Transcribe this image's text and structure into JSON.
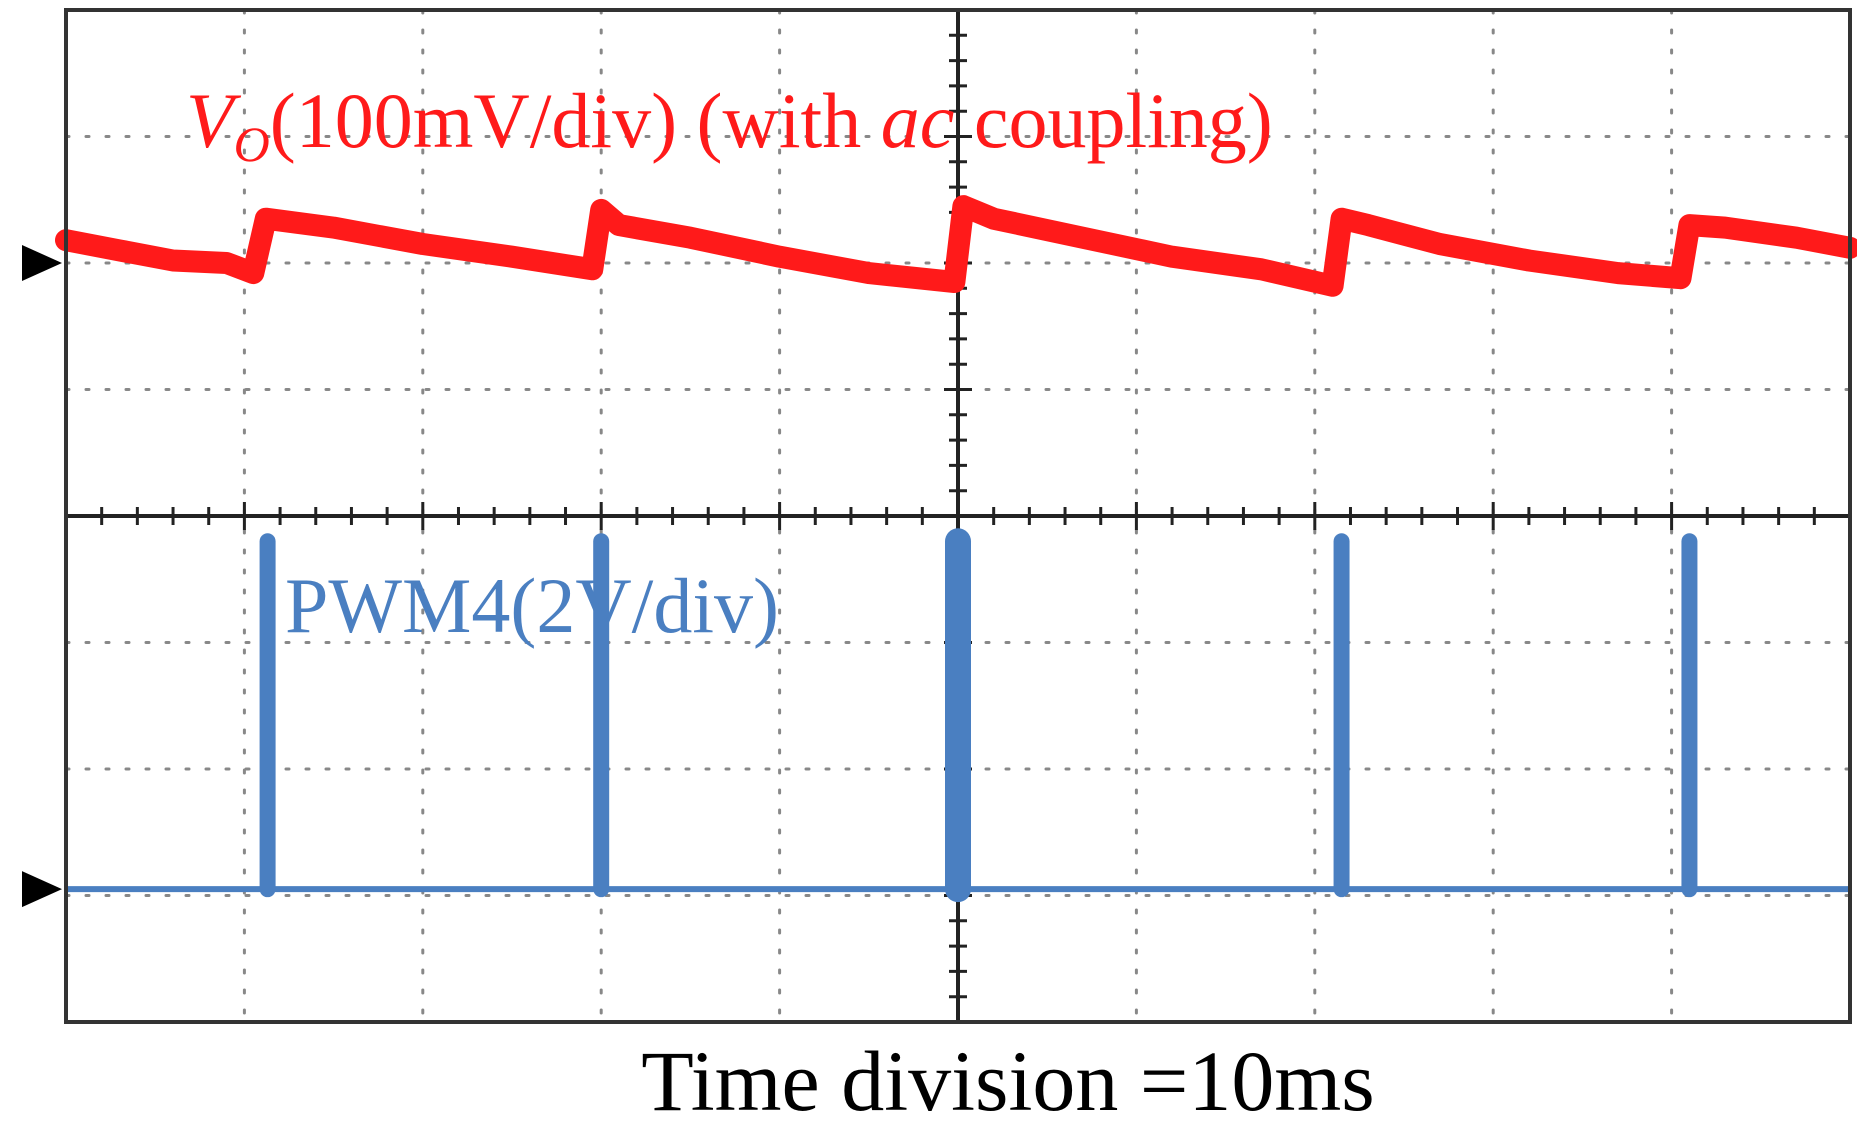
{
  "chart_data": {
    "type": "line",
    "title": "",
    "xlabel": "Time division =10ms",
    "ylabel": "",
    "grid": true,
    "divisions": {
      "x": 10,
      "y": 8
    },
    "xlim": [
      0,
      10
    ],
    "ylim": [
      0,
      8
    ],
    "colors": {
      "vo": "#ff1a1a",
      "pwm": "#4a7fc1",
      "frame": "#333333",
      "grid": "#888888",
      "marker": "#000000"
    },
    "labels": {
      "vo": {
        "symbol": "V",
        "subscript": "O",
        "text": "(100mV/div) (with ",
        "italic": "ac",
        "suffix": " coupling)"
      },
      "pwm": "PWM4(2V/div)"
    },
    "series": [
      {
        "name": "VO",
        "unit": "div",
        "markerLevel": 6.0,
        "x": [
          0.0,
          0.3,
          0.6,
          0.9,
          1.05,
          1.12,
          1.5,
          2.0,
          2.5,
          2.95,
          3.0,
          3.1,
          3.5,
          4.0,
          4.5,
          4.98,
          5.03,
          5.2,
          5.7,
          6.2,
          6.7,
          7.1,
          7.15,
          7.3,
          7.7,
          8.2,
          8.7,
          9.05,
          9.1,
          9.3,
          9.7,
          10.0
        ],
        "values": [
          6.18,
          6.1,
          6.02,
          6.0,
          5.92,
          6.35,
          6.28,
          6.15,
          6.05,
          5.95,
          6.42,
          6.3,
          6.2,
          6.05,
          5.92,
          5.85,
          6.45,
          6.35,
          6.2,
          6.05,
          5.95,
          5.82,
          6.35,
          6.3,
          6.15,
          6.02,
          5.92,
          5.88,
          6.3,
          6.28,
          6.2,
          6.12
        ]
      },
      {
        "name": "PWM4",
        "unit": "div",
        "markerLevel": 1.05,
        "baseline": 1.05,
        "pulseHeight": 2.75,
        "pulses": [
          1.13,
          3.0,
          5.0,
          7.15,
          9.1
        ]
      }
    ]
  }
}
